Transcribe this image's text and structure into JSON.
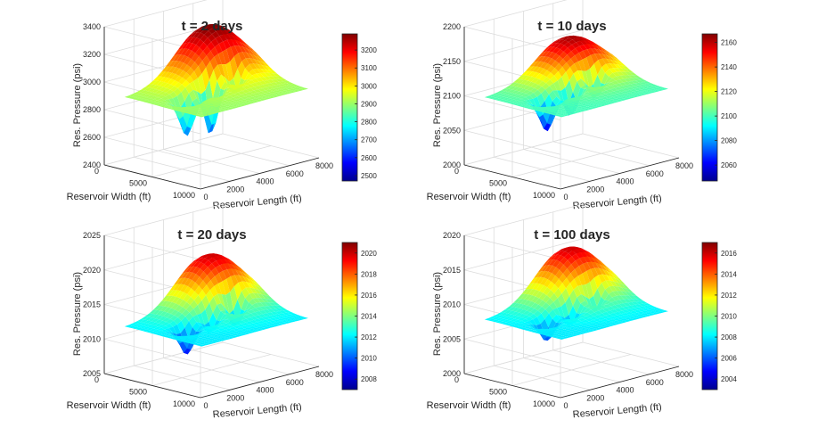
{
  "chart_data": [
    {
      "type": "surface3d",
      "title": "t = 2 days",
      "xlabel": "Reservoir Length (ft)",
      "ylabel": "Reservoir Width (ft)",
      "zlabel": "Res. Pressure (psi)",
      "xticks": [
        "0",
        "2000",
        "4000",
        "6000",
        "8000"
      ],
      "yticks": [
        "0",
        "5000",
        "10000"
      ],
      "zticks": [
        "2400",
        "2600",
        "2800",
        "3000",
        "3200",
        "3400"
      ],
      "zlim": [
        2400,
        3400
      ],
      "colorbar": {
        "range": [
          2470,
          3290
        ],
        "ticks": [
          "2500",
          "2600",
          "2700",
          "2800",
          "2900",
          "3000",
          "3100",
          "3200"
        ]
      },
      "surface": {
        "base": 2900,
        "peak": 3300,
        "wells": [
          2620,
          2520,
          2700
        ]
      }
    },
    {
      "type": "surface3d",
      "title": "t = 10 days",
      "xlabel": "Reservoir Length (ft)",
      "ylabel": "Reservoir Width (ft)",
      "zlabel": "Res. Pressure (psi)",
      "xticks": [
        "0",
        "2000",
        "4000",
        "6000",
        "8000"
      ],
      "yticks": [
        "0",
        "5000",
        "10000"
      ],
      "zticks": [
        "2000",
        "2050",
        "2100",
        "2150",
        "2200"
      ],
      "zlim": [
        2000,
        2200
      ],
      "colorbar": {
        "range": [
          2047,
          2167
        ],
        "ticks": [
          "2060",
          "2080",
          "2100",
          "2120",
          "2140",
          "2160"
        ]
      },
      "surface": {
        "base": 2100,
        "peak": 2163,
        "wells": [
          2052,
          2055,
          2060
        ]
      }
    },
    {
      "type": "surface3d",
      "title": "t = 20 days",
      "xlabel": "Reservoir Length (ft)",
      "ylabel": "Reservoir Width (ft)",
      "zlabel": "Res. Pressure (psi)",
      "xticks": [
        "0",
        "2000",
        "4000",
        "6000",
        "8000"
      ],
      "yticks": [
        "0",
        "5000",
        "10000"
      ],
      "zticks": [
        "2005",
        "2010",
        "2015",
        "2020",
        "2025"
      ],
      "zlim": [
        2005,
        2025
      ],
      "colorbar": {
        "range": [
          2007,
          2021
        ],
        "ticks": [
          "2008",
          "2010",
          "2012",
          "2014",
          "2016",
          "2018",
          "2020"
        ]
      },
      "surface": {
        "base": 2012,
        "peak": 2020,
        "wells": [
          2008,
          2009,
          2007.5
        ]
      }
    },
    {
      "type": "surface3d",
      "title": "t = 100 days",
      "xlabel": "Reservoir Length (ft)",
      "ylabel": "Reservoir Width (ft)",
      "zlabel": "Res. Pressure (psi)",
      "xticks": [
        "0",
        "2000",
        "4000",
        "6000",
        "8000"
      ],
      "yticks": [
        "0",
        "5000",
        "10000"
      ],
      "zticks": [
        "2000",
        "2005",
        "2010",
        "2015",
        "2020"
      ],
      "zlim": [
        2000,
        2020
      ],
      "colorbar": {
        "range": [
          2003,
          2017
        ],
        "ticks": [
          "2004",
          "2006",
          "2008",
          "2010",
          "2012",
          "2014",
          "2016"
        ]
      },
      "surface": {
        "base": 2008,
        "peak": 2016,
        "wells": [
          2005,
          2005,
          2005
        ]
      }
    }
  ]
}
